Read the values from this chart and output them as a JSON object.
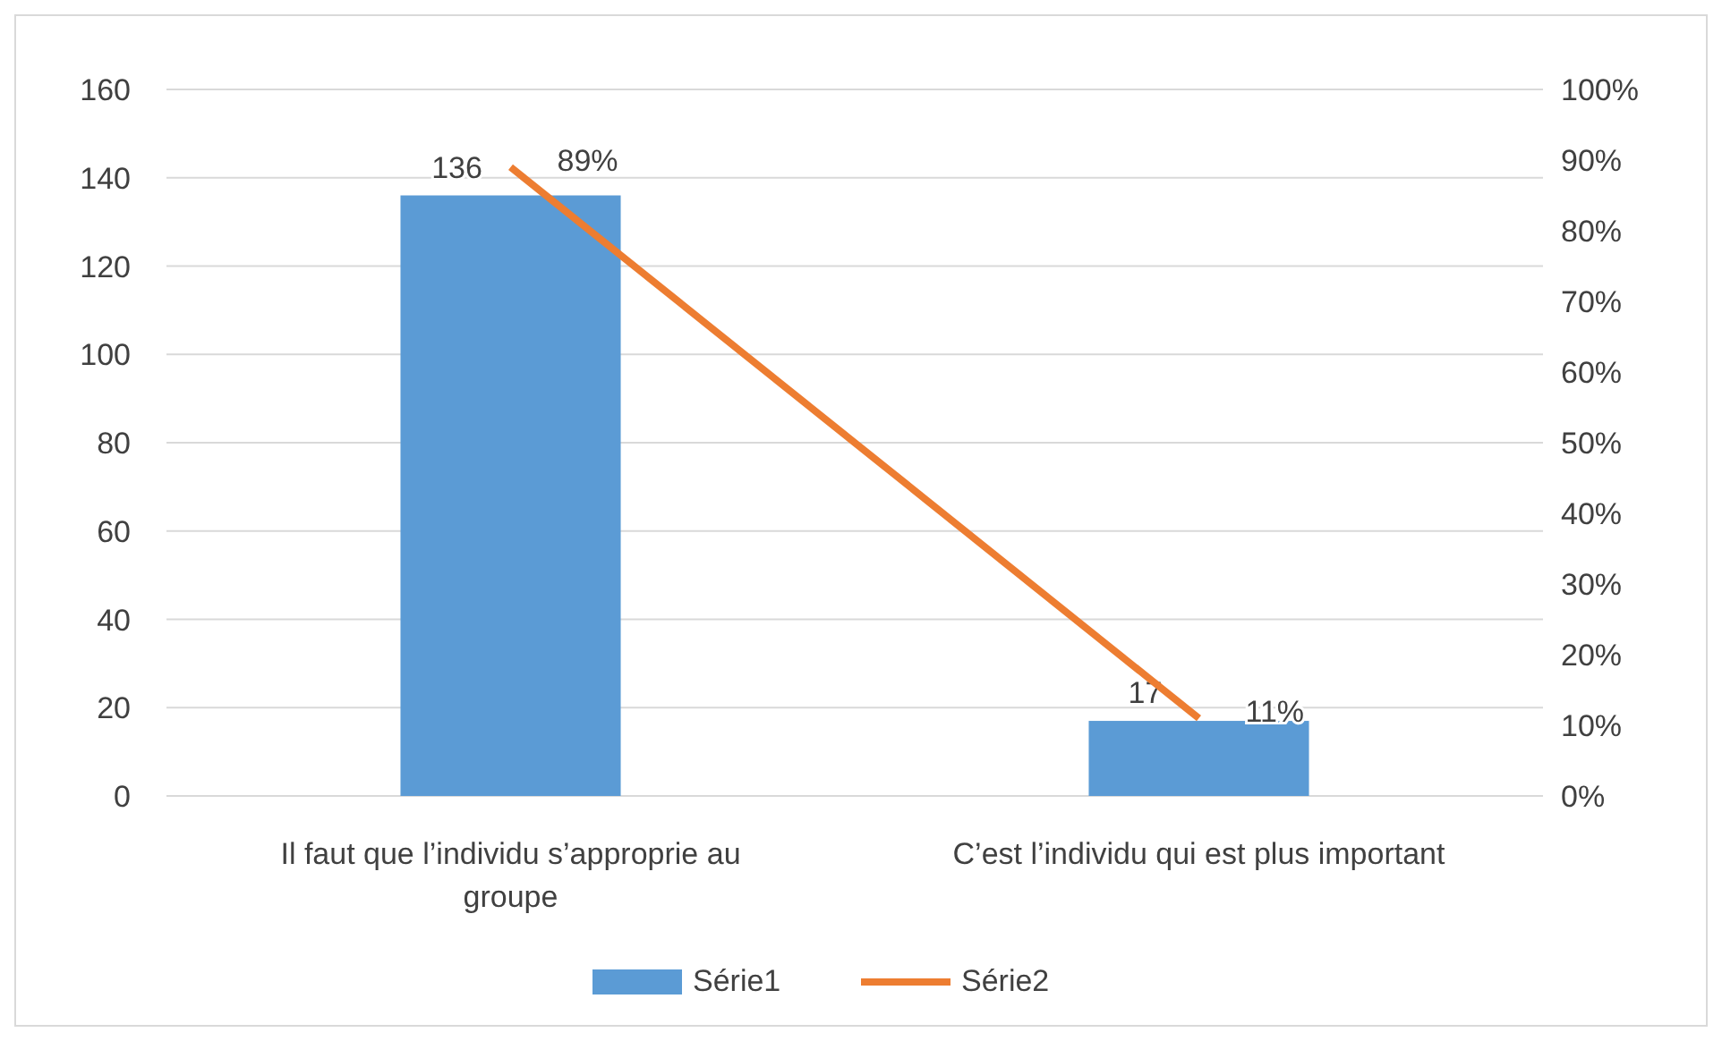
{
  "chart_data": {
    "type": "bar",
    "categories": [
      "Il faut que l’individu s’approprie au groupe",
      "C’est l’individu qui est plus important"
    ],
    "series": [
      {
        "name": "Série1",
        "color": "#5b9bd5",
        "values": [
          136,
          17
        ],
        "value_labels": [
          "136",
          "17"
        ]
      },
      {
        "name": "Série2",
        "type": "line",
        "axis": "y2",
        "color": "#ed7d31",
        "values": [
          89,
          11
        ],
        "value_labels": [
          "89%",
          "11%"
        ],
        "marker": "none"
      }
    ],
    "ylim": [
      0,
      160
    ],
    "yticks": [
      0,
      20,
      40,
      60,
      80,
      100,
      120,
      140,
      160
    ],
    "y2lim": [
      0,
      100
    ],
    "y2ticks": [
      {
        "value": 0,
        "label": "0%"
      },
      {
        "value": 10,
        "label": "10%"
      },
      {
        "value": 20,
        "label": "20%"
      },
      {
        "value": 30,
        "label": "30%"
      },
      {
        "value": 40,
        "label": "40%"
      },
      {
        "value": 50,
        "label": "50%"
      },
      {
        "value": 60,
        "label": "60%"
      },
      {
        "value": 70,
        "label": "70%"
      },
      {
        "value": 80,
        "label": "80%"
      },
      {
        "value": 90,
        "label": "90%"
      },
      {
        "value": 100,
        "label": "100%"
      }
    ],
    "grid": "y",
    "legend": "bottom"
  }
}
